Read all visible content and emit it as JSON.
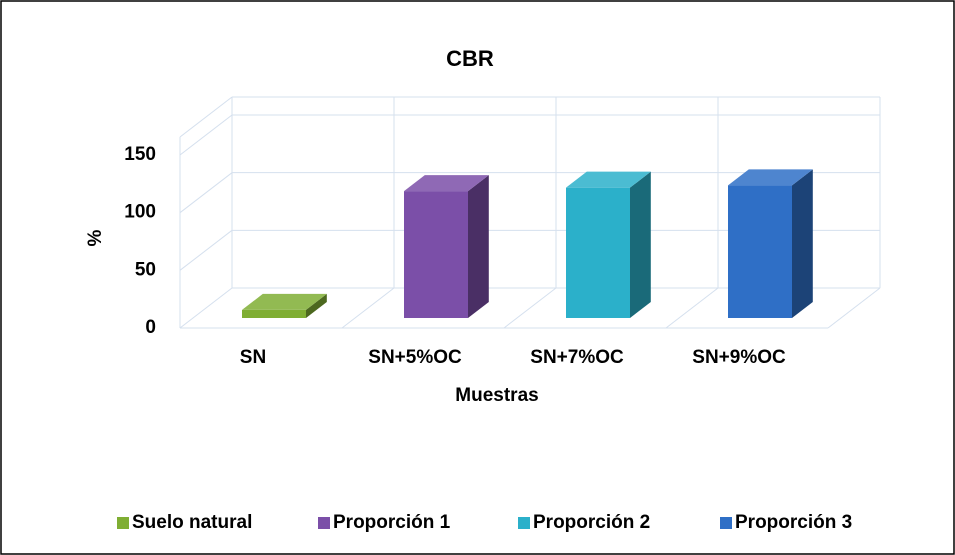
{
  "chart_data": {
    "type": "bar3d",
    "title": "CBR",
    "x_label": "Muestras",
    "y_label": "%",
    "categories": [
      "SN",
      "SN+5%OC",
      "SN+7%OC",
      "SN+9%OC"
    ],
    "series": [
      {
        "name": "Suelo natural",
        "color": "#7fae33",
        "values": [
          7,
          null,
          null,
          null
        ]
      },
      {
        "name": "Proporción 1",
        "color": "#7b4fa8",
        "values": [
          null,
          110,
          null,
          null
        ]
      },
      {
        "name": "Proporción 2",
        "color": "#2bb0ca",
        "values": [
          null,
          null,
          113,
          null
        ]
      },
      {
        "name": "Proporción 3",
        "color": "#2f6fc6",
        "values": [
          null,
          null,
          null,
          115
        ]
      }
    ],
    "ylim": [
      0,
      150
    ],
    "yticks": [
      0,
      50,
      100,
      150
    ],
    "grid": true,
    "legend": "bottom"
  }
}
